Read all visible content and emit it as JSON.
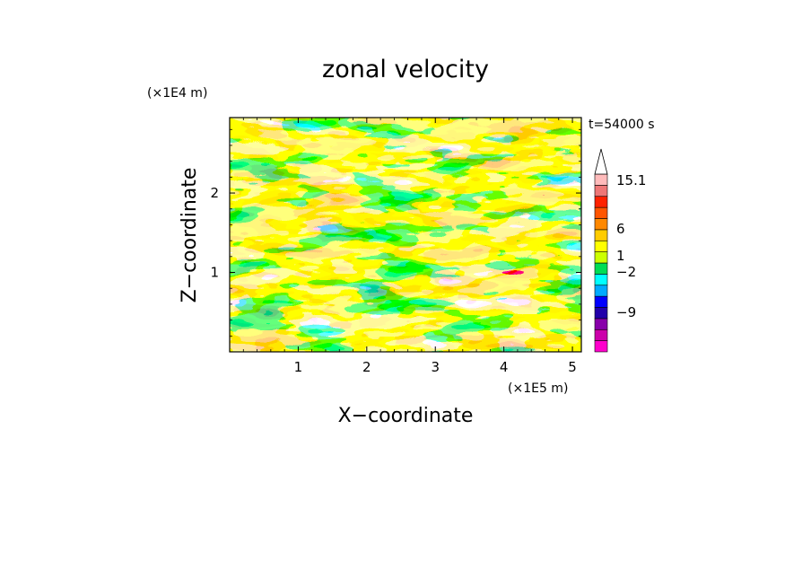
{
  "chart_data": {
    "type": "heatmap",
    "title": "zonal velocity",
    "xlabel": "X−coordinate",
    "ylabel": "Z−coordinate",
    "x_scale_label": "(×1E5 m)",
    "y_scale_label": "(×1E4 m)",
    "time_label": "t=54000 s",
    "xlim": [
      0,
      5.13
    ],
    "ylim": [
      0,
      2.95
    ],
    "x_ticks": [
      1,
      2,
      3,
      4,
      5
    ],
    "x_tick_labels": [
      "1",
      "2",
      "3",
      "4",
      "5"
    ],
    "y_ticks": [
      1,
      2
    ],
    "y_tick_labels": [
      "1",
      "2"
    ],
    "grid": false,
    "colorbar": {
      "position": "right",
      "levels_bottom_to_top": [
        {
          "color": "#ff00cc"
        },
        {
          "color": "#cc00aa"
        },
        {
          "color": "#8800aa"
        },
        {
          "color": "#2200aa"
        },
        {
          "color": "#0000ff"
        },
        {
          "color": "#00aaff"
        },
        {
          "color": "#00ffff"
        },
        {
          "color": "#00dd55"
        },
        {
          "color": "#ccff00"
        },
        {
          "color": "#ffff00"
        },
        {
          "color": "#ffcc00"
        },
        {
          "color": "#ff8800"
        },
        {
          "color": "#ff5500"
        },
        {
          "color": "#ff2200"
        },
        {
          "color": "#ee7777"
        },
        {
          "color": "#ffbbbb"
        }
      ],
      "labels": [
        "15.1",
        "6",
        "1",
        "−2",
        "−9"
      ],
      "label_values": [
        15.1,
        6,
        1,
        -2,
        -9
      ]
    },
    "field_palette": [
      "#0000cc",
      "#00ccff",
      "#22ee55",
      "#ffff00",
      "#ffcc33",
      "#ff9933",
      "#ff7711"
    ]
  }
}
